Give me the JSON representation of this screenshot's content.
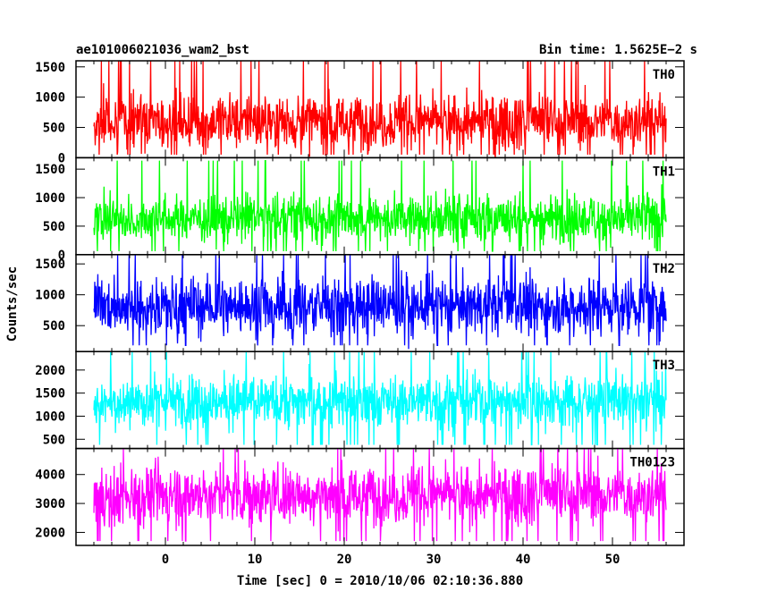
{
  "header": {
    "title": "ae101006021036_wam2_bst",
    "bin_time": "Bin time: 1.5625E−2 s"
  },
  "chart_data": {
    "type": "line",
    "title": "ae101006021036_wam2_bst",
    "subtitle": "Bin time: 1.5625E−2 s",
    "xlabel": "Time [sec] 0 = 2010/10/06 02:10:36.880",
    "ylabel": "Counts/sec",
    "x_range": [
      -10,
      58
    ],
    "data_x_range": [
      -8,
      56
    ],
    "bin_time_s": 0.015625,
    "x_ticks": [
      0,
      10,
      20,
      30,
      40,
      50
    ],
    "grid": false,
    "panels": [
      {
        "name": "TH0",
        "color": "#ff0000",
        "ylim": [
          0,
          1600
        ],
        "y_ticks": [
          0,
          500,
          1000,
          1500
        ],
        "low": 50,
        "mean": 600,
        "spread": 400,
        "peak": 1600
      },
      {
        "name": "TH1",
        "color": "#00ff00",
        "ylim": [
          0,
          1700
        ],
        "y_ticks": [
          0,
          500,
          1000,
          1500
        ],
        "low": 60,
        "mean": 640,
        "spread": 380,
        "peak": 1650
      },
      {
        "name": "TH2",
        "color": "#0000ff",
        "ylim": [
          80,
          1650
        ],
        "y_ticks": [
          500,
          1000,
          1500
        ],
        "low": 180,
        "mean": 820,
        "spread": 420,
        "peak": 1650
      },
      {
        "name": "TH3",
        "color": "#00ffff",
        "ylim": [
          300,
          2400
        ],
        "y_ticks": [
          500,
          1000,
          1500,
          2000
        ],
        "low": 380,
        "mean": 1320,
        "spread": 520,
        "peak": 2400
      },
      {
        "name": "TH0123",
        "color": "#ff00ff",
        "ylim": [
          1550,
          4900
        ],
        "y_ticks": [
          2000,
          3000,
          4000
        ],
        "low": 1700,
        "mean": 3300,
        "spread": 900,
        "peak": 4900
      }
    ]
  }
}
